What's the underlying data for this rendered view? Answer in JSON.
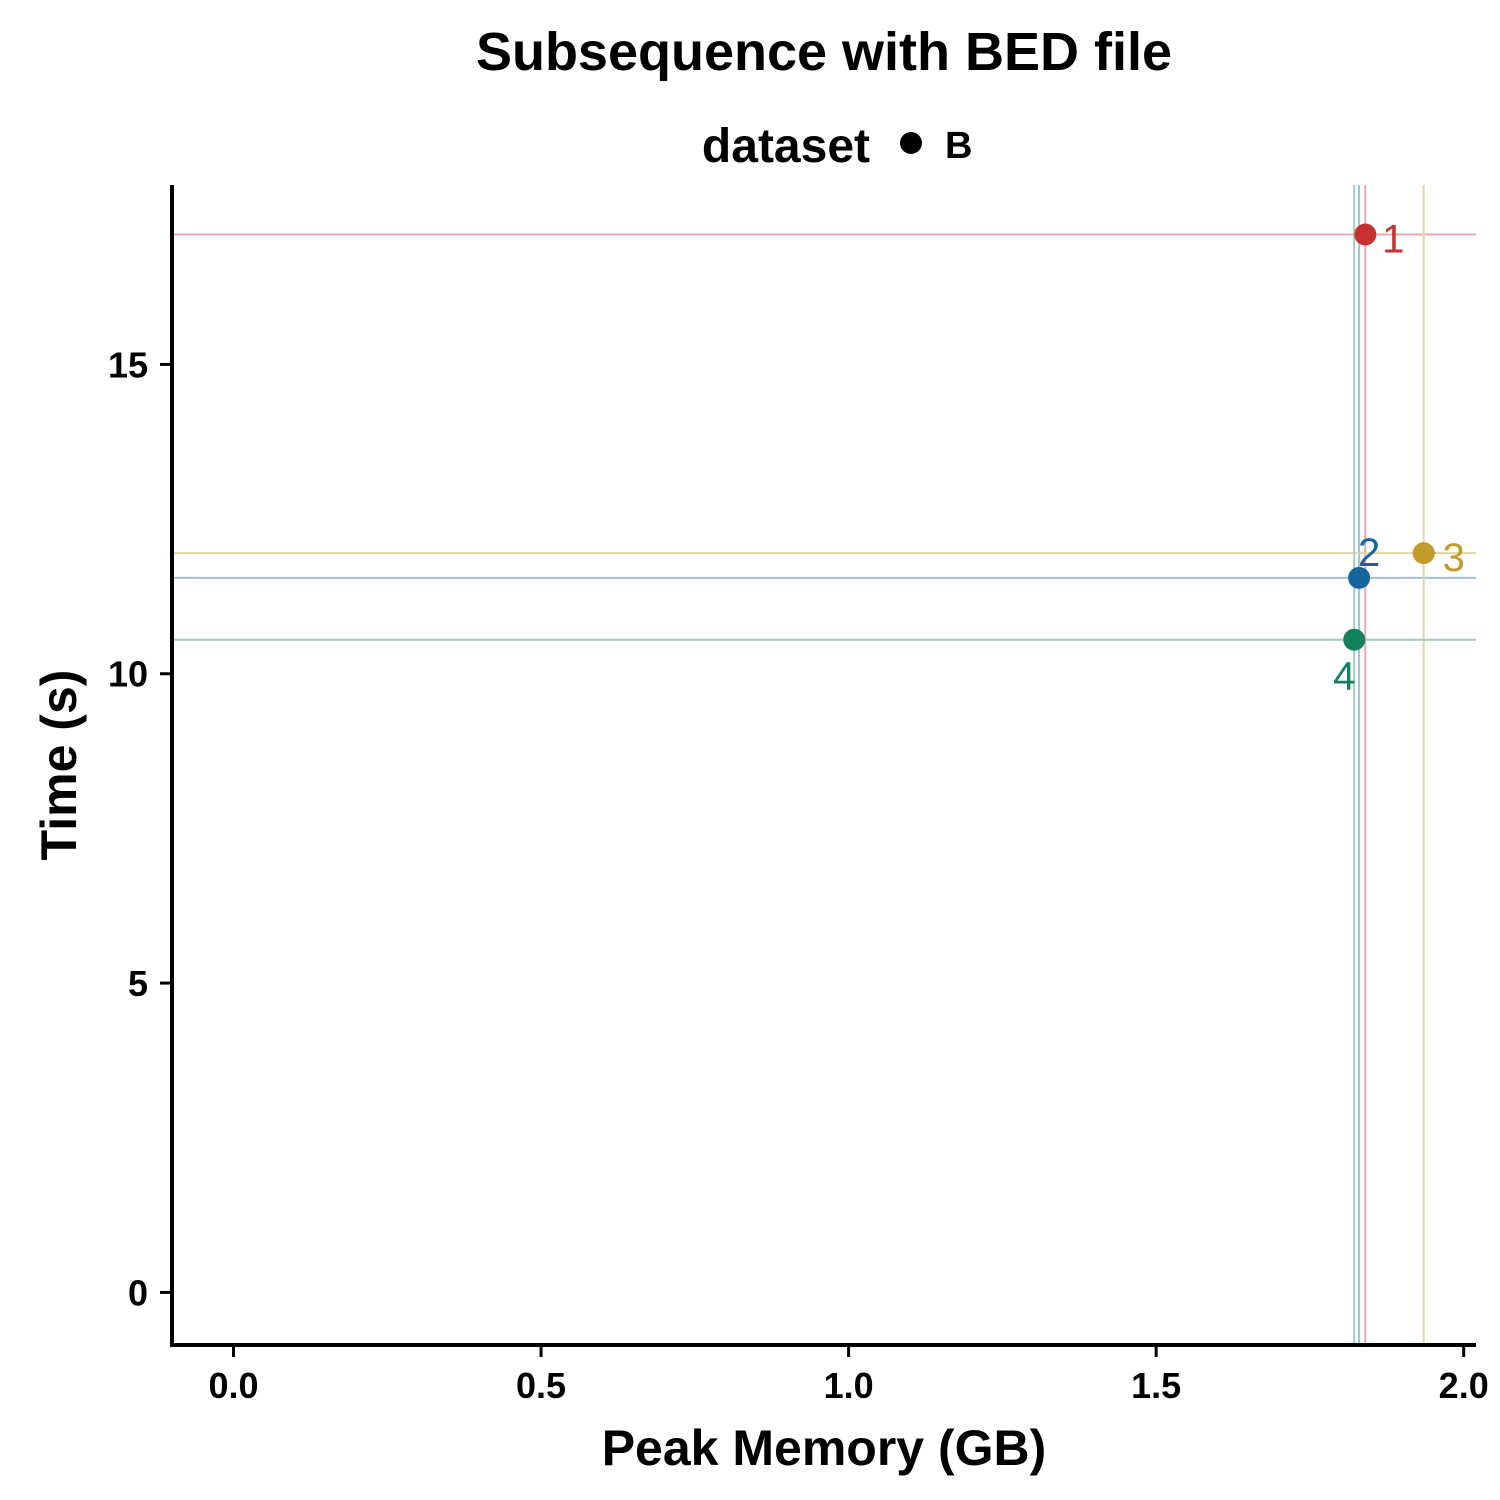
{
  "chart_data": {
    "type": "scatter",
    "title": "Subsequence with BED file",
    "xlabel": "Peak Memory (GB)",
    "ylabel": "Time (s)",
    "xlim": [
      -0.1,
      2.02
    ],
    "ylim": [
      -0.85,
      17.9
    ],
    "xticks": [
      0.0,
      0.5,
      1.0,
      1.5,
      2.0
    ],
    "xtick_labels": [
      "0.0",
      "0.5",
      "1.0",
      "1.5",
      "2.0"
    ],
    "yticks": [
      0,
      5,
      10,
      15
    ],
    "ytick_labels": [
      "0",
      "5",
      "10",
      "15"
    ],
    "grid": false,
    "legend": {
      "position": "top",
      "title": "dataset",
      "entries": [
        "B"
      ]
    },
    "reference_lines": true,
    "points": [
      {
        "label": "1",
        "x": 1.84,
        "y": 17.1,
        "color": "#C8312F",
        "line_color": "#E9AAAA"
      },
      {
        "label": "2",
        "x": 1.83,
        "y": 11.55,
        "color": "#15669E",
        "line_color": "#9FC0D6"
      },
      {
        "label": "3",
        "x": 1.935,
        "y": 11.95,
        "color": "#C39A2C",
        "line_color": "#E6D4A6"
      },
      {
        "label": "4",
        "x": 1.822,
        "y": 10.55,
        "color": "#13805E",
        "line_color": "#9FCCBC"
      }
    ]
  }
}
